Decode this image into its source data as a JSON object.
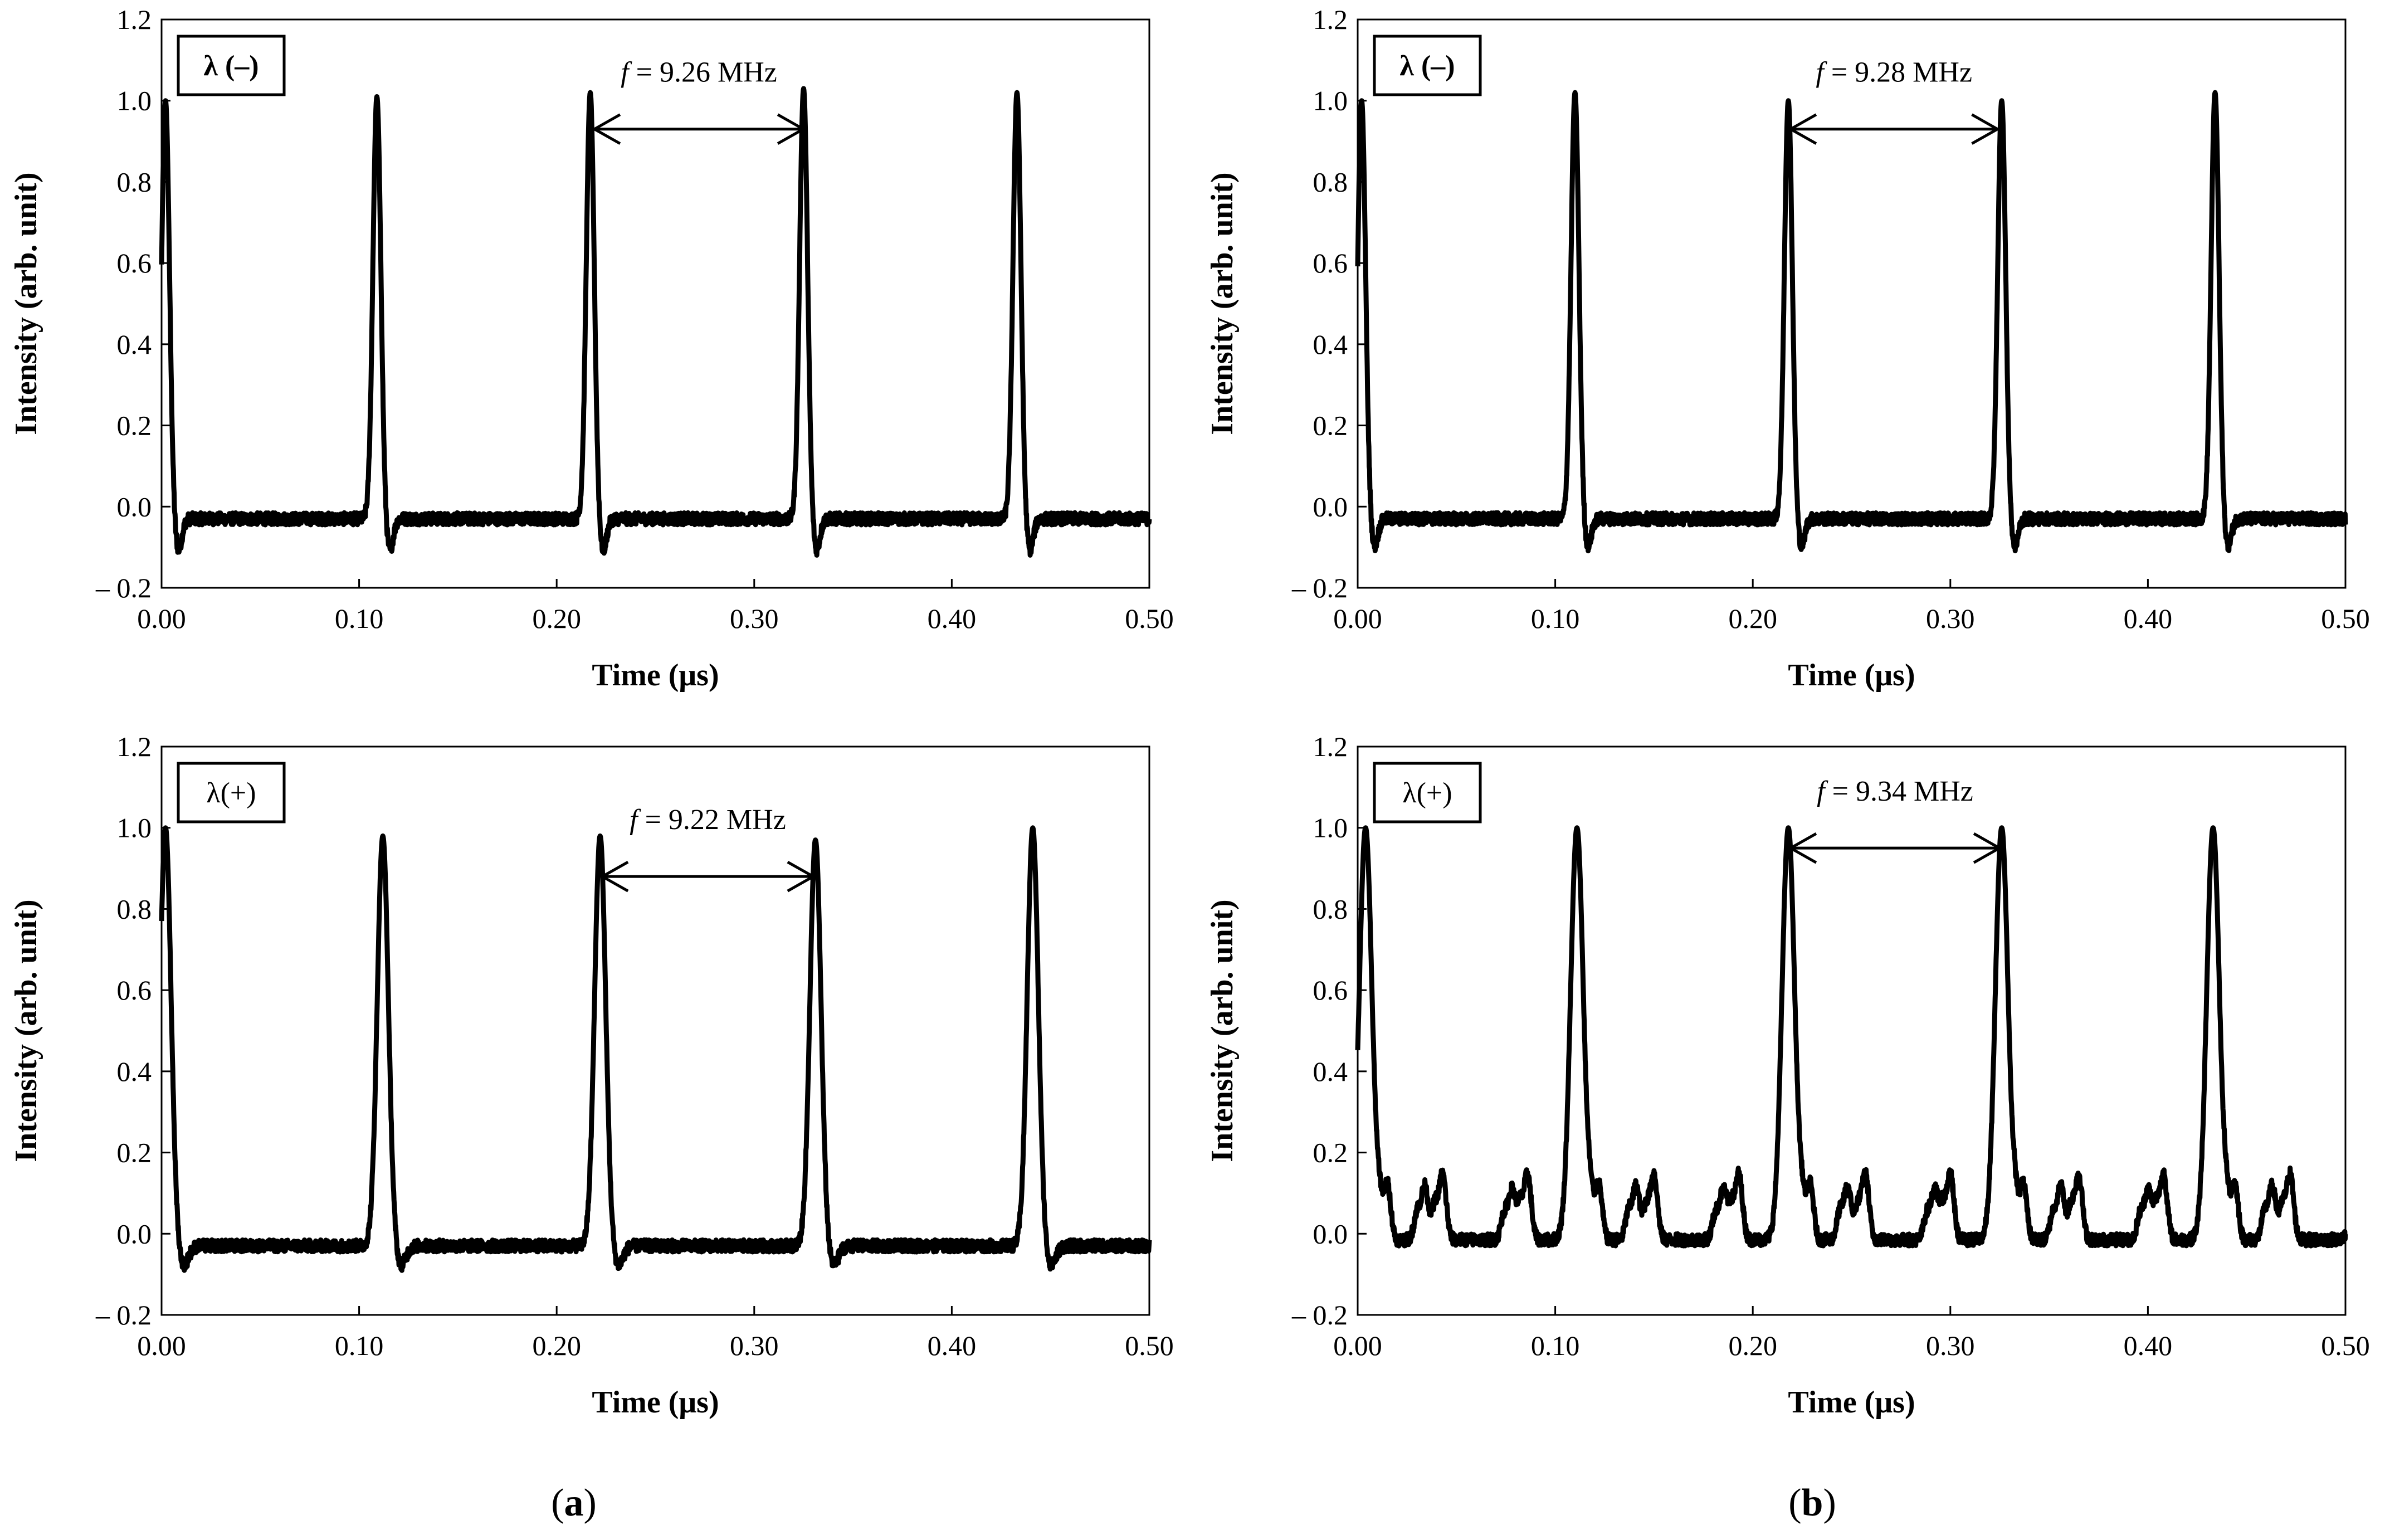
{
  "panel_labels": [
    {
      "id": "a",
      "open": "(",
      "letter": "a",
      "close": ")"
    },
    {
      "id": "b",
      "open": "(",
      "letter": "b",
      "close": ")"
    }
  ],
  "chart_data": [
    {
      "type": "line",
      "panel": "a",
      "legend": "λ (–)",
      "legend_bold": true,
      "annotation": {
        "var": "f",
        "text": " = 9.26  MHz",
        "arrow_from": 0.218,
        "arrow_to": 0.326,
        "arrow_y": 0.93
      },
      "xlabel": "Time (μs)",
      "ylabel": "Intensity (arb. unit)",
      "xlim": [
        0,
        0.5
      ],
      "ylim": [
        -0.2,
        1.2
      ],
      "xticks": [
        "0.00",
        "0.10",
        "0.20",
        "0.30",
        "0.40",
        "0.50"
      ],
      "yticks": [
        "– 0.2",
        "0.0",
        "0.2",
        "0.4",
        "0.6",
        "0.8",
        "1.0",
        "1.2"
      ],
      "baseline": -0.03,
      "pulses": [
        {
          "t": 0.002,
          "peak": 1.0
        },
        {
          "t": 0.109,
          "peak": 1.01
        },
        {
          "t": 0.217,
          "peak": 1.02
        },
        {
          "t": 0.325,
          "peak": 1.03
        },
        {
          "t": 0.433,
          "peak": 1.02
        }
      ],
      "pulse_width": 0.002,
      "dip": -0.11,
      "satellites": []
    },
    {
      "type": "line",
      "panel": "b",
      "legend": "λ (–)",
      "legend_bold": true,
      "annotation": {
        "var": "f",
        "text": " = 9.28  MHz",
        "arrow_from": 0.218,
        "arrow_to": 0.325,
        "arrow_y": 0.93
      },
      "xlabel": "Time (μs)",
      "ylabel": "Intensity (arb. unit)",
      "xlim": [
        0,
        0.5
      ],
      "ylim": [
        -0.2,
        1.2
      ],
      "xticks": [
        "0.00",
        "0.10",
        "0.20",
        "0.30",
        "0.40",
        "0.50"
      ],
      "yticks": [
        "– 0.2",
        "0.0",
        "0.2",
        "0.4",
        "0.6",
        "0.8",
        "1.0",
        "1.2"
      ],
      "baseline": -0.03,
      "pulses": [
        {
          "t": 0.002,
          "peak": 1.0
        },
        {
          "t": 0.11,
          "peak": 1.02
        },
        {
          "t": 0.218,
          "peak": 1.0
        },
        {
          "t": 0.326,
          "peak": 1.0
        },
        {
          "t": 0.434,
          "peak": 1.02
        }
      ],
      "pulse_width": 0.002,
      "dip": -0.1,
      "satellites": []
    },
    {
      "type": "line",
      "panel": "a",
      "legend": "λ(+)",
      "legend_bold": false,
      "annotation": {
        "var": "f",
        "text": " = 9.22  MHz",
        "arrow_from": 0.222,
        "arrow_to": 0.331,
        "arrow_y": 0.88
      },
      "xlabel": "Time (μs)",
      "ylabel": "Intensity (arb. unit)",
      "xlim": [
        0,
        0.5
      ],
      "ylim": [
        -0.2,
        1.2
      ],
      "xticks": [
        "0.00",
        "0.10",
        "0.20",
        "0.30",
        "0.40",
        "0.50"
      ],
      "yticks": [
        "– 0.2",
        "0.0",
        "0.2",
        "0.4",
        "0.6",
        "0.8",
        "1.0",
        "1.2"
      ],
      "baseline": -0.03,
      "pulses": [
        {
          "t": 0.002,
          "peak": 1.0
        },
        {
          "t": 0.112,
          "peak": 0.98
        },
        {
          "t": 0.222,
          "peak": 0.98
        },
        {
          "t": 0.331,
          "peak": 0.97
        },
        {
          "t": 0.441,
          "peak": 1.0
        }
      ],
      "pulse_width": 0.0028,
      "dip": -0.08,
      "satellites": []
    },
    {
      "type": "line",
      "panel": "b",
      "legend": "λ(+)",
      "legend_bold": false,
      "annotation": {
        "var": "f",
        "text": " = 9.34  MHz",
        "arrow_from": 0.218,
        "arrow_to": 0.326,
        "arrow_y": 0.95
      },
      "xlabel": "Time (μs)",
      "ylabel": "Intensity (arb. unit)",
      "xlim": [
        0,
        0.5
      ],
      "ylim": [
        -0.2,
        1.2
      ],
      "xticks": [
        "0.00",
        "0.10",
        "0.20",
        "0.30",
        "0.40",
        "0.50"
      ],
      "yticks": [
        "– 0.2",
        "0.0",
        "0.2",
        "0.4",
        "0.6",
        "0.8",
        "1.0",
        "1.2"
      ],
      "baseline": -0.015,
      "pulses": [
        {
          "t": 0.004,
          "peak": 1.0
        },
        {
          "t": 0.111,
          "peak": 1.0
        },
        {
          "t": 0.218,
          "peak": 1.0
        },
        {
          "t": 0.326,
          "peak": 1.0
        },
        {
          "t": 0.433,
          "peak": 1.0
        }
      ],
      "pulse_width": 0.0032,
      "dip": -0.03,
      "satellites": [
        {
          "dt": 0.011,
          "h": 0.15
        },
        {
          "dt": 0.03,
          "h": 0.13
        },
        {
          "dt": 0.039,
          "h": 0.16
        },
        {
          "dt": 0.074,
          "h": 0.12
        },
        {
          "dt": 0.082,
          "h": 0.16
        }
      ]
    }
  ]
}
